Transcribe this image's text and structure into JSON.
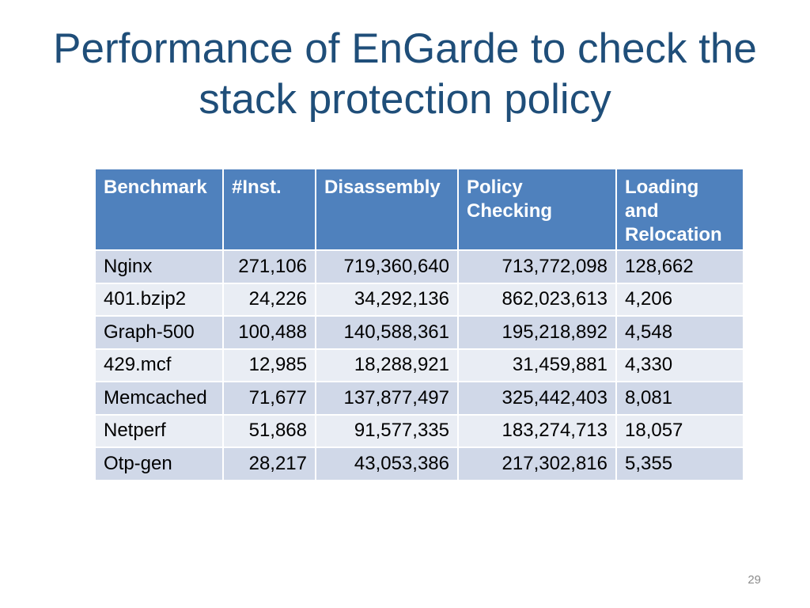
{
  "slide": {
    "title": "Performance of EnGarde to check the stack protection policy",
    "page_number": "29"
  },
  "table": {
    "headers": [
      "Benchmark",
      "#Inst.",
      "Disassembly",
      "Policy Checking",
      "Loading and Relocation"
    ],
    "rows": [
      [
        "Nginx",
        "271,106",
        "719,360,640",
        "713,772,098",
        "128,662"
      ],
      [
        "401.bzip2",
        "24,226",
        "34,292,136",
        "862,023,613",
        "4,206"
      ],
      [
        "Graph-500",
        "100,488",
        "140,588,361",
        "195,218,892",
        "4,548"
      ],
      [
        "429.mcf",
        "12,985",
        "18,288,921",
        "31,459,881",
        "4,330"
      ],
      [
        "Memcached",
        "71,677",
        "137,877,497",
        "325,442,403",
        "8,081"
      ],
      [
        "Netperf",
        "51,868",
        "91,577,335",
        "183,274,713",
        "18,057"
      ],
      [
        "Otp-gen",
        "28,217",
        "43,053,386",
        "217,302,816",
        "5,355"
      ]
    ]
  },
  "colors": {
    "title": "#1f4e79",
    "header_bg": "#4f81bd",
    "row_odd_bg": "#d0d8e8",
    "row_even_bg": "#e9edf4"
  }
}
